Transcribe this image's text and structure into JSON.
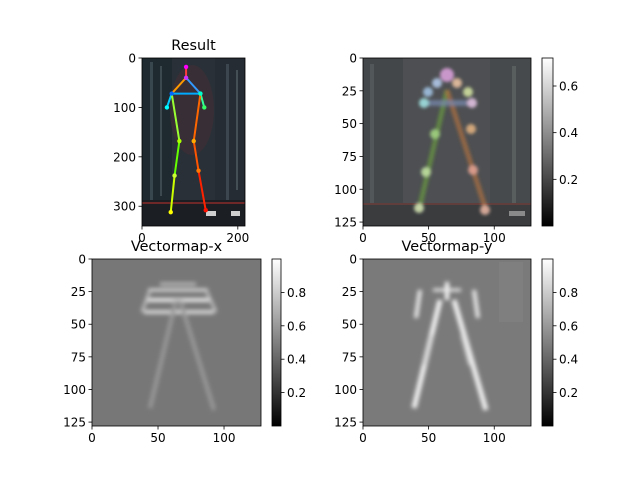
{
  "chart_data": [
    {
      "type": "heatmap",
      "title": "Result",
      "xticks": [
        0,
        200
      ],
      "yticks": [
        0,
        100,
        200,
        300
      ],
      "xlim": [
        0,
        215
      ],
      "ylim": [
        340,
        0
      ],
      "colorbar": false,
      "content": "pose estimation overlay on photo",
      "keypoints": [
        {
          "x": 92,
          "y": 18
        },
        {
          "x": 92,
          "y": 40
        },
        {
          "x": 62,
          "y": 72
        },
        {
          "x": 122,
          "y": 72
        },
        {
          "x": 52,
          "y": 100
        },
        {
          "x": 130,
          "y": 100
        },
        {
          "x": 78,
          "y": 168
        },
        {
          "x": 108,
          "y": 168
        },
        {
          "x": 68,
          "y": 238
        },
        {
          "x": 118,
          "y": 228
        },
        {
          "x": 60,
          "y": 312
        },
        {
          "x": 133,
          "y": 308
        }
      ]
    },
    {
      "type": "heatmap",
      "title": "",
      "xticks": [
        0,
        50,
        100
      ],
      "yticks": [
        0,
        25,
        50,
        75,
        100,
        125
      ],
      "xlim": [
        0,
        128
      ],
      "ylim": [
        128,
        0
      ],
      "colorbar": true,
      "colorbar_ticks": [
        0.2,
        0.4,
        0.6
      ],
      "colorbar_range": [
        0.0,
        0.72
      ],
      "content": "heatmap overlay on downscaled photo"
    },
    {
      "type": "heatmap",
      "title": "Vectormap-x",
      "xticks": [
        0,
        50,
        100
      ],
      "yticks": [
        0,
        25,
        50,
        75,
        100,
        125
      ],
      "xlim": [
        0,
        128
      ],
      "ylim": [
        128,
        0
      ],
      "colorbar": true,
      "colorbar_ticks": [
        0.2,
        0.4,
        0.6,
        0.8
      ],
      "colorbar_range": [
        0.0,
        1.0
      ]
    },
    {
      "type": "heatmap",
      "title": "Vectormap-y",
      "xticks": [
        0,
        50,
        100
      ],
      "yticks": [
        0,
        25,
        50,
        75,
        100,
        125
      ],
      "xlim": [
        0,
        128
      ],
      "ylim": [
        128,
        0
      ],
      "colorbar": true,
      "colorbar_ticks": [
        0.2,
        0.4,
        0.6,
        0.8
      ],
      "colorbar_range": [
        0.0,
        1.0
      ]
    }
  ]
}
